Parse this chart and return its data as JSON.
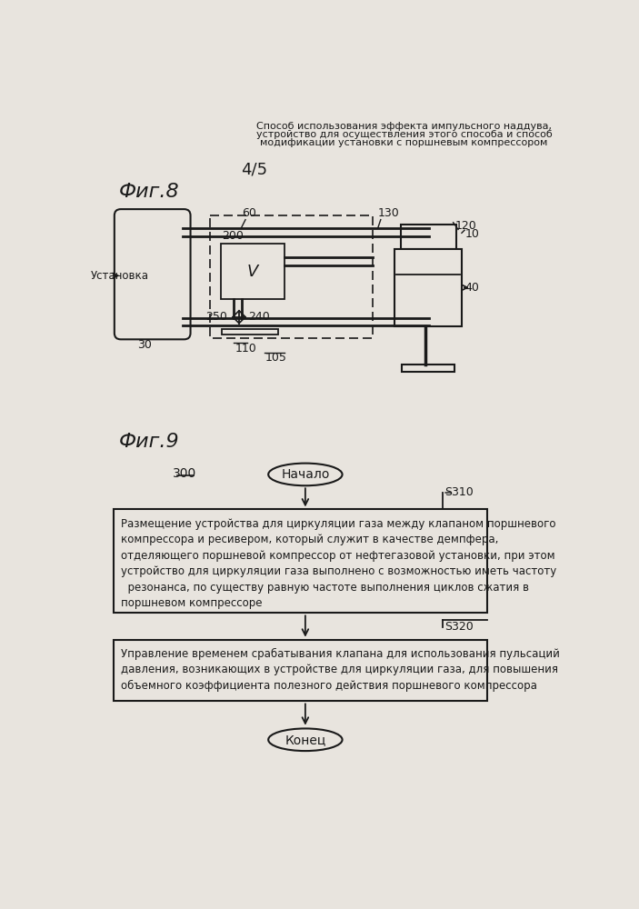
{
  "title_line1": "Способ использования эффекта импульсного наддува,",
  "title_line2": "устройство для осуществления этого способа и способ",
  "title_line3": "модификации установки с поршневым компрессором",
  "page_label": "4/5",
  "fig8_label": "Фиг.8",
  "fig9_label": "Фиг.9",
  "bg_color": "#e8e4de",
  "line_color": "#1a1a1a",
  "s310_label": "S310",
  "s320_label": "S320",
  "label_300": "300",
  "start_label": "Начало",
  "end_label": "Конец",
  "box1_text": "Размещение устройства для циркуляции газа между клапаном поршневого\nкомпрессора и ресивером, который служит в качестве демпфера,\nотделяющего поршневой компрессор от нефтегазовой установки, при этом\nустройство для циркуляции газа выполнено с возможностью иметь частоту\n  резонанса, по существу равную частоте выполнения циклов сжатия в\nпоршневом компрессоре",
  "box2_text": "Управление временем срабатывания клапана для использования пульсаций\nдавления, возникающих в устройстве для циркуляции газа, для повышения\nобъемного коэффициента полезного действия поршневого компрессора",
  "label_60": "60",
  "label_200": "200",
  "label_250": "250",
  "label_240": "240",
  "label_110": "110",
  "label_105": "105",
  "label_130": "130",
  "label_120": "120",
  "label_10": "10",
  "label_40": "40",
  "label_30": "30",
  "label_V": "V",
  "label_ustanovka": "Установка"
}
